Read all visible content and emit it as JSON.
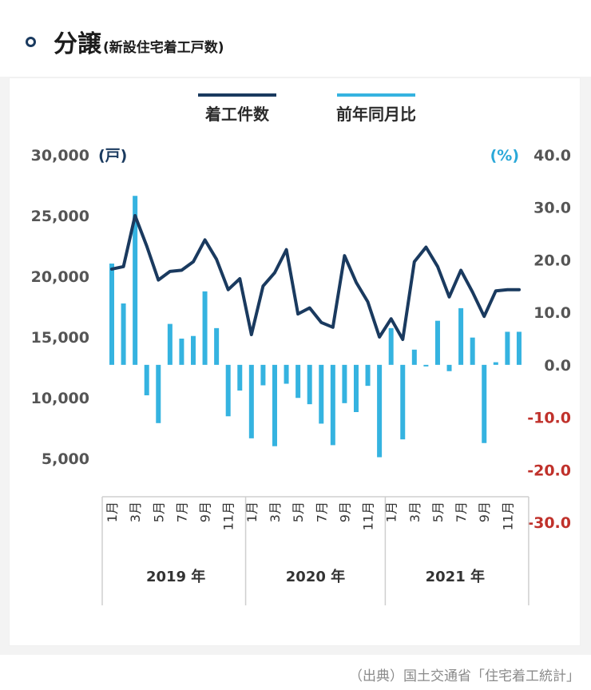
{
  "header": {
    "title": "分譲",
    "subtitle": "(新設住宅着工戸数)"
  },
  "source": "（出典）国土交通省「住宅着工統計」",
  "colors": {
    "line": "#1a3a5f",
    "bar": "#35b3e0",
    "negative_label": "#c0312b",
    "percent_label": "#2aa8d8"
  },
  "chart_data": {
    "type": "bar+line",
    "legend": [
      "着工件数",
      "前年同月比"
    ],
    "legend_placement": "top-center",
    "left_axis": {
      "unit": "(戸)",
      "ticks": [
        "30,000",
        "25,000",
        "20,000",
        "15,000",
        "10,000",
        "5,000"
      ],
      "tick_values": [
        30000,
        25000,
        20000,
        15000,
        10000,
        5000
      ]
    },
    "right_axis": {
      "unit": "(%)",
      "ticks": [
        "40.0",
        "30.0",
        "20.0",
        "10.0",
        "0.0",
        "-10.0",
        "-20.0",
        "-30.0"
      ],
      "tick_values": [
        40,
        30,
        20,
        10,
        0,
        -10,
        -20,
        -30
      ]
    },
    "x_month_labels": [
      "1月",
      "3月",
      "5月",
      "7月",
      "9月",
      "11月"
    ],
    "year_labels": [
      "2019 年",
      "2020 年",
      "2021 年"
    ],
    "months_per_year": [
      12,
      12,
      12
    ],
    "series": [
      {
        "name": "着工件数",
        "kind": "line",
        "axis": "left",
        "values": [
          20600,
          20800,
          25000,
          22500,
          19700,
          20400,
          20500,
          21200,
          23000,
          21400,
          18900,
          19800,
          15200,
          19200,
          20300,
          22200,
          16900,
          17400,
          16200,
          15800,
          21700,
          19500,
          17900,
          15000,
          16500,
          14800,
          21200,
          22400,
          20800,
          18300,
          20500,
          18700,
          16700,
          18800,
          18900,
          18900
        ]
      },
      {
        "name": "前年同月比",
        "kind": "bar",
        "axis": "right",
        "values": [
          19.3,
          11.7,
          32.2,
          -5.8,
          -11.1,
          7.8,
          5.0,
          5.5,
          14.0,
          7.0,
          -9.8,
          -4.9,
          -14.0,
          -3.9,
          -15.5,
          -3.6,
          -6.3,
          -7.5,
          -11.2,
          -15.3,
          -7.3,
          -9.0,
          -4.0,
          -17.6,
          7.0,
          -14.2,
          2.9,
          -0.3,
          8.4,
          -1.2,
          10.8,
          5.2,
          -14.9,
          0.5,
          6.3,
          6.3
        ]
      }
    ]
  }
}
